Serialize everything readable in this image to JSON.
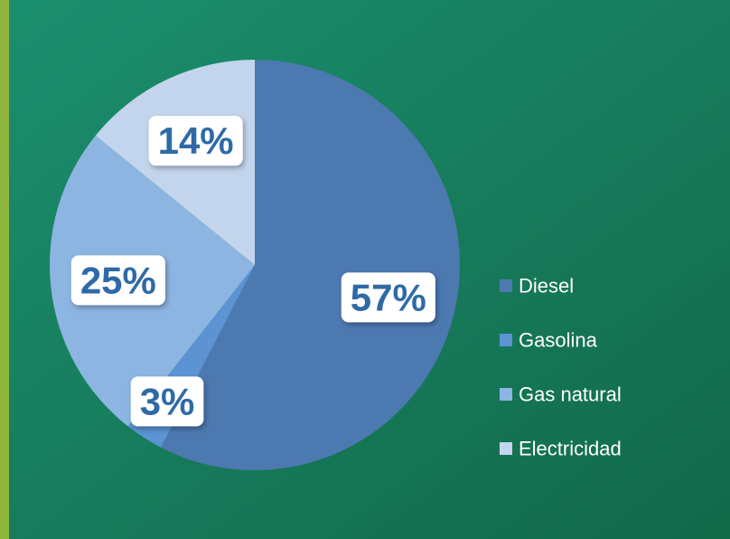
{
  "chart_data": {
    "type": "pie",
    "categories": [
      "Diesel",
      "Gasolina",
      "Gas natural",
      "Electricidad"
    ],
    "values": [
      57,
      3,
      25,
      14
    ],
    "value_labels": [
      "57%",
      "3%",
      "25%",
      "14%"
    ],
    "colors": [
      "#4d79b1",
      "#5b93d3",
      "#8db5e2",
      "#c3d5ec"
    ],
    "legend": "right"
  }
}
